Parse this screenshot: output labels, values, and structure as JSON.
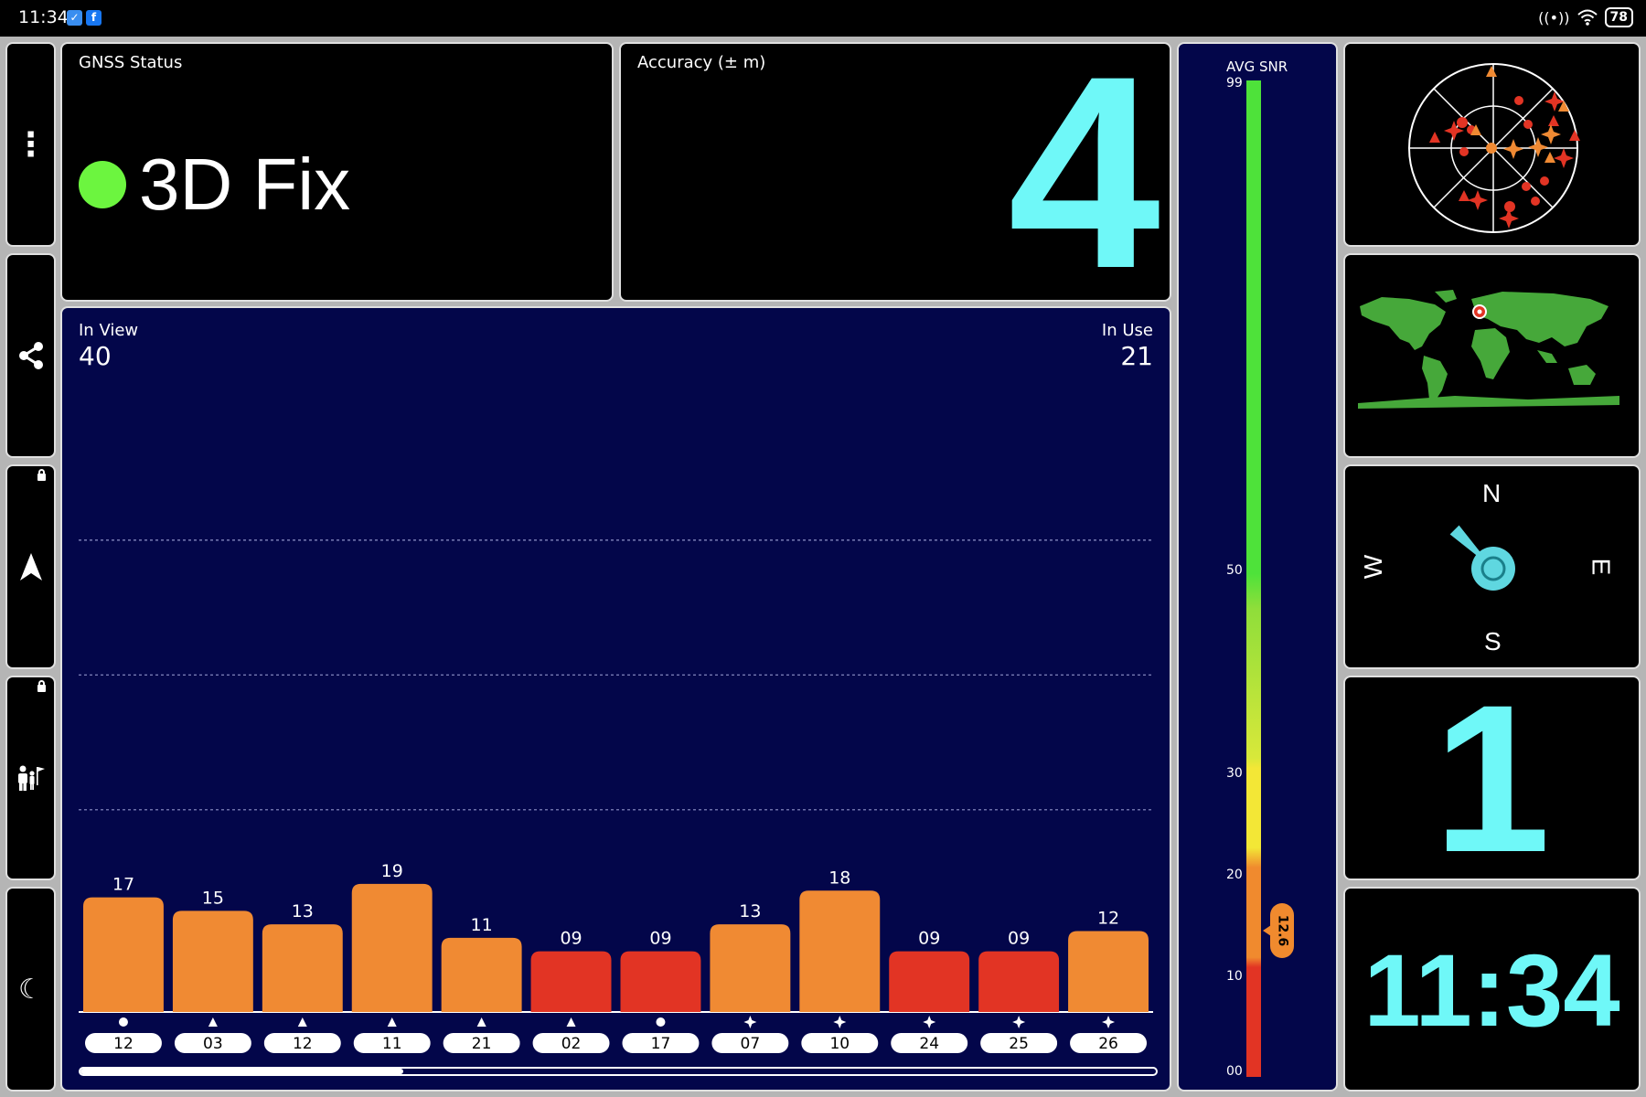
{
  "status_bar": {
    "time": "11:34",
    "app_icons": [
      "checkmark-app-icon",
      "facebook-icon"
    ],
    "battery": "78"
  },
  "sidebar": {
    "buttons": [
      {
        "name": "menu-button",
        "icon": "more-vertical-icon",
        "glyph": "⋮",
        "locked": false
      },
      {
        "name": "share-button",
        "icon": "share-icon",
        "glyph": "",
        "locked": false
      },
      {
        "name": "navigation-button",
        "icon": "navigation-arrow-icon",
        "glyph": "▲",
        "locked": true
      },
      {
        "name": "tourist-guide-button",
        "icon": "guide-person-icon",
        "glyph": "",
        "locked": true
      },
      {
        "name": "night-mode-button",
        "icon": "moon-icon",
        "glyph": "☾",
        "locked": false
      }
    ]
  },
  "gnss_status": {
    "label": "GNSS Status",
    "value": "3D Fix",
    "indicator_color": "#6cf53f"
  },
  "accuracy": {
    "label": "Accuracy (± m)",
    "value": "4"
  },
  "satellites": {
    "in_view_label": "In View",
    "in_view": "40",
    "in_use_label": "In Use",
    "in_use": "21",
    "scroll_position": 0.3
  },
  "avg_snr": {
    "title": "AVG SNR",
    "ticks": [
      "99",
      "50",
      "30",
      "20",
      "10",
      "00"
    ],
    "value": "12.6"
  },
  "chart_data": {
    "type": "bar",
    "categories": [
      "12",
      "03",
      "12",
      "11",
      "21",
      "02",
      "17",
      "07",
      "10",
      "24",
      "25",
      "26"
    ],
    "values": [
      17,
      15,
      13,
      19,
      11,
      9,
      9,
      13,
      18,
      9,
      9,
      12
    ],
    "value_labels": [
      "17",
      "15",
      "13",
      "19",
      "11",
      "09",
      "09",
      "13",
      "18",
      "09",
      "09",
      "12"
    ],
    "constellation_markers": [
      "circle",
      "triangle",
      "triangle",
      "triangle",
      "triangle",
      "triangle",
      "circle",
      "star",
      "star",
      "star",
      "star",
      "star"
    ],
    "ylim": [
      0,
      99
    ],
    "gridlines": [
      30,
      50,
      70
    ],
    "bar_colors": {
      "high": "#f08a33",
      "low": "#e23424"
    }
  },
  "compass": {
    "north": "N",
    "south": "S",
    "east": "E",
    "west": "W",
    "heading_deg": 315
  },
  "satellites_widget": {
    "value": "1"
  },
  "clock": {
    "time": "11:34"
  }
}
